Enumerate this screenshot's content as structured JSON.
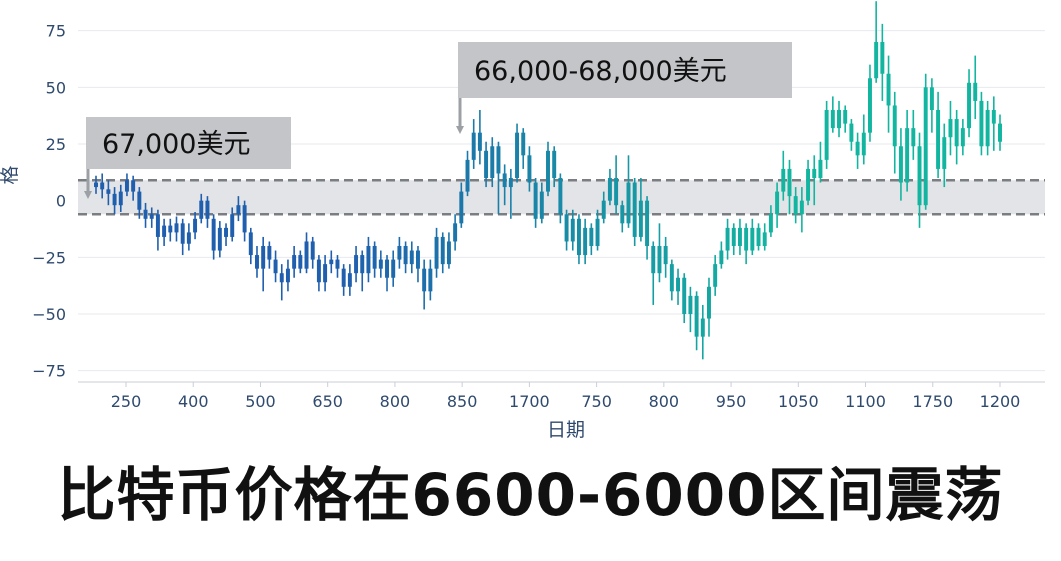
{
  "chart_data": {
    "type": "candlestick",
    "title": "",
    "xlabel": "日期",
    "ylabel": "格",
    "yticks": [
      75,
      50,
      25,
      0,
      -25,
      -50,
      -75
    ],
    "ytick_labels": [
      "75",
      "50",
      "25",
      "0",
      "−25",
      "−50",
      "−75"
    ],
    "xtick_labels": [
      "250",
      "400",
      "500",
      "650",
      "800",
      "850",
      "1700",
      "750",
      "800",
      "950",
      "1050",
      "1100",
      "1750",
      "1200"
    ],
    "ylim": [
      -80,
      85
    ],
    "grid": true,
    "colors": {
      "early": "#1f5fae",
      "late": "#12b5a0",
      "band": "#e2e4e7",
      "band_line": "#7a7d81"
    },
    "band": {
      "upper": 9,
      "lower": -6
    },
    "annotations": [
      {
        "label": "67,000美元",
        "value": 2
      },
      {
        "label": "66,000-68,000美元",
        "value": 18
      }
    ],
    "candles": [
      {
        "o": 6,
        "c": 8,
        "h": 11,
        "l": 3
      },
      {
        "o": 8,
        "c": 5,
        "h": 12,
        "l": 1
      },
      {
        "o": 5,
        "c": 3,
        "h": 9,
        "l": -2
      },
      {
        "o": 3,
        "c": -2,
        "h": 6,
        "l": -6
      },
      {
        "o": -2,
        "c": 4,
        "h": 7,
        "l": -5
      },
      {
        "o": 4,
        "c": 9,
        "h": 12,
        "l": 2
      },
      {
        "o": 9,
        "c": 4,
        "h": 11,
        "l": 0
      },
      {
        "o": 4,
        "c": -4,
        "h": 6,
        "l": -8
      },
      {
        "o": -4,
        "c": -8,
        "h": -1,
        "l": -12
      },
      {
        "o": -8,
        "c": -6,
        "h": -3,
        "l": -12
      },
      {
        "o": -6,
        "c": -16,
        "h": -4,
        "l": -22
      },
      {
        "o": -16,
        "c": -11,
        "h": -8,
        "l": -20
      },
      {
        "o": -11,
        "c": -14,
        "h": -8,
        "l": -18
      },
      {
        "o": -14,
        "c": -10,
        "h": -7,
        "l": -18
      },
      {
        "o": -10,
        "c": -19,
        "h": -8,
        "l": -24
      },
      {
        "o": -19,
        "c": -14,
        "h": -10,
        "l": -22
      },
      {
        "o": -14,
        "c": -8,
        "h": -5,
        "l": -17
      },
      {
        "o": -8,
        "c": 0,
        "h": 3,
        "l": -10
      },
      {
        "o": 0,
        "c": -8,
        "h": 2,
        "l": -12
      },
      {
        "o": -8,
        "c": -22,
        "h": -6,
        "l": -26
      },
      {
        "o": -22,
        "c": -12,
        "h": -9,
        "l": -25
      },
      {
        "o": -12,
        "c": -16,
        "h": -10,
        "l": -20
      },
      {
        "o": -16,
        "c": -6,
        "h": -3,
        "l": -18
      },
      {
        "o": -6,
        "c": -2,
        "h": 2,
        "l": -9
      },
      {
        "o": -2,
        "c": -14,
        "h": 0,
        "l": -18
      },
      {
        "o": -14,
        "c": -24,
        "h": -12,
        "l": -28
      },
      {
        "o": -24,
        "c": -30,
        "h": -20,
        "l": -34
      },
      {
        "o": -30,
        "c": -20,
        "h": -16,
        "l": -40
      },
      {
        "o": -20,
        "c": -26,
        "h": -18,
        "l": -30
      },
      {
        "o": -26,
        "c": -32,
        "h": -22,
        "l": -36
      },
      {
        "o": -32,
        "c": -36,
        "h": -28,
        "l": -44
      },
      {
        "o": -36,
        "c": -30,
        "h": -26,
        "l": -40
      },
      {
        "o": -30,
        "c": -24,
        "h": -20,
        "l": -34
      },
      {
        "o": -24,
        "c": -30,
        "h": -22,
        "l": -32
      },
      {
        "o": -30,
        "c": -18,
        "h": -14,
        "l": -32
      },
      {
        "o": -18,
        "c": -26,
        "h": -16,
        "l": -30
      },
      {
        "o": -26,
        "c": -36,
        "h": -24,
        "l": -40
      },
      {
        "o": -36,
        "c": -28,
        "h": -24,
        "l": -40
      },
      {
        "o": -28,
        "c": -26,
        "h": -22,
        "l": -32
      },
      {
        "o": -26,
        "c": -30,
        "h": -24,
        "l": -34
      },
      {
        "o": -30,
        "c": -38,
        "h": -28,
        "l": -42
      },
      {
        "o": -38,
        "c": -32,
        "h": -28,
        "l": -42
      },
      {
        "o": -32,
        "c": -24,
        "h": -20,
        "l": -36
      },
      {
        "o": -24,
        "c": -32,
        "h": -22,
        "l": -40
      },
      {
        "o": -32,
        "c": -20,
        "h": -16,
        "l": -36
      },
      {
        "o": -20,
        "c": -30,
        "h": -18,
        "l": -34
      },
      {
        "o": -30,
        "c": -26,
        "h": -22,
        "l": -34
      },
      {
        "o": -26,
        "c": -34,
        "h": -24,
        "l": -40
      },
      {
        "o": -34,
        "c": -26,
        "h": -22,
        "l": -38
      },
      {
        "o": -26,
        "c": -20,
        "h": -16,
        "l": -30
      },
      {
        "o": -20,
        "c": -28,
        "h": -18,
        "l": -32
      },
      {
        "o": -28,
        "c": -22,
        "h": -18,
        "l": -32
      },
      {
        "o": -22,
        "c": -30,
        "h": -20,
        "l": -36
      },
      {
        "o": -30,
        "c": -40,
        "h": -26,
        "l": -48
      },
      {
        "o": -40,
        "c": -30,
        "h": -26,
        "l": -44
      },
      {
        "o": -30,
        "c": -16,
        "h": -12,
        "l": -34
      },
      {
        "o": -16,
        "c": -28,
        "h": -14,
        "l": -32
      },
      {
        "o": -28,
        "c": -18,
        "h": -14,
        "l": -30
      },
      {
        "o": -18,
        "c": -10,
        "h": -6,
        "l": -22
      },
      {
        "o": -10,
        "c": 4,
        "h": 8,
        "l": -12
      },
      {
        "o": 4,
        "c": 18,
        "h": 22,
        "l": 2
      },
      {
        "o": 18,
        "c": 30,
        "h": 36,
        "l": 14
      },
      {
        "o": 30,
        "c": 22,
        "h": 40,
        "l": 16
      },
      {
        "o": 22,
        "c": 10,
        "h": 26,
        "l": 6
      },
      {
        "o": 10,
        "c": 24,
        "h": 28,
        "l": 6
      },
      {
        "o": 24,
        "c": 12,
        "h": 26,
        "l": -6
      },
      {
        "o": 12,
        "c": 6,
        "h": 16,
        "l": -2
      },
      {
        "o": 6,
        "c": 10,
        "h": 14,
        "l": -8
      },
      {
        "o": 10,
        "c": 30,
        "h": 34,
        "l": 8
      },
      {
        "o": 30,
        "c": 20,
        "h": 32,
        "l": 14
      },
      {
        "o": 20,
        "c": 8,
        "h": 24,
        "l": 4
      },
      {
        "o": 8,
        "c": -8,
        "h": 10,
        "l": -12
      },
      {
        "o": -8,
        "c": 4,
        "h": 8,
        "l": -10
      },
      {
        "o": 4,
        "c": 22,
        "h": 26,
        "l": 2
      },
      {
        "o": 22,
        "c": 10,
        "h": 24,
        "l": 6
      },
      {
        "o": 10,
        "c": -6,
        "h": 12,
        "l": -10
      },
      {
        "o": -6,
        "c": -18,
        "h": -4,
        "l": -22
      },
      {
        "o": -18,
        "c": -8,
        "h": -4,
        "l": -22
      },
      {
        "o": -8,
        "c": -24,
        "h": -6,
        "l": -28
      },
      {
        "o": -24,
        "c": -12,
        "h": -8,
        "l": -28
      },
      {
        "o": -12,
        "c": -20,
        "h": -10,
        "l": -24
      },
      {
        "o": -20,
        "c": -8,
        "h": -4,
        "l": -22
      },
      {
        "o": -8,
        "c": 0,
        "h": 4,
        "l": -10
      },
      {
        "o": 0,
        "c": 10,
        "h": 14,
        "l": -2
      },
      {
        "o": 10,
        "c": -2,
        "h": 20,
        "l": -6
      },
      {
        "o": -2,
        "c": -10,
        "h": 0,
        "l": -14
      },
      {
        "o": -10,
        "c": 8,
        "h": 20,
        "l": -12
      },
      {
        "o": 8,
        "c": -16,
        "h": 10,
        "l": -20
      },
      {
        "o": -16,
        "c": 0,
        "h": 10,
        "l": -18
      },
      {
        "o": 0,
        "c": -20,
        "h": 2,
        "l": -26
      },
      {
        "o": -20,
        "c": -32,
        "h": -18,
        "l": -46
      },
      {
        "o": -32,
        "c": -20,
        "h": -10,
        "l": -36
      },
      {
        "o": -20,
        "c": -28,
        "h": -16,
        "l": -34
      },
      {
        "o": -28,
        "c": -40,
        "h": -26,
        "l": -44
      },
      {
        "o": -40,
        "c": -34,
        "h": -30,
        "l": -46
      },
      {
        "o": -34,
        "c": -50,
        "h": -32,
        "l": -54
      },
      {
        "o": -50,
        "c": -42,
        "h": -38,
        "l": -58
      },
      {
        "o": -42,
        "c": -60,
        "h": -40,
        "l": -66
      },
      {
        "o": -60,
        "c": -52,
        "h": -46,
        "l": -70
      },
      {
        "o": -52,
        "c": -38,
        "h": -34,
        "l": -60
      },
      {
        "o": -38,
        "c": -28,
        "h": -24,
        "l": -42
      },
      {
        "o": -28,
        "c": -22,
        "h": -18,
        "l": -30
      },
      {
        "o": -22,
        "c": -12,
        "h": -8,
        "l": -26
      },
      {
        "o": -12,
        "c": -20,
        "h": -10,
        "l": -24
      },
      {
        "o": -20,
        "c": -12,
        "h": -8,
        "l": -24
      },
      {
        "o": -12,
        "c": -22,
        "h": -10,
        "l": -28
      },
      {
        "o": -22,
        "c": -12,
        "h": -8,
        "l": -24
      },
      {
        "o": -12,
        "c": -20,
        "h": -10,
        "l": -22
      },
      {
        "o": -20,
        "c": -14,
        "h": -10,
        "l": -22
      },
      {
        "o": -14,
        "c": -6,
        "h": -2,
        "l": -16
      },
      {
        "o": -6,
        "c": 4,
        "h": 8,
        "l": -12
      },
      {
        "o": 4,
        "c": 14,
        "h": 22,
        "l": 0
      },
      {
        "o": 14,
        "c": 2,
        "h": 18,
        "l": -6
      },
      {
        "o": 2,
        "c": -6,
        "h": 6,
        "l": -10
      },
      {
        "o": -6,
        "c": 0,
        "h": 6,
        "l": -14
      },
      {
        "o": 0,
        "c": 14,
        "h": 18,
        "l": -2
      },
      {
        "o": 14,
        "c": 10,
        "h": 20,
        "l": -2
      },
      {
        "o": 10,
        "c": 18,
        "h": 26,
        "l": 8
      },
      {
        "o": 18,
        "c": 40,
        "h": 44,
        "l": 14
      },
      {
        "o": 40,
        "c": 32,
        "h": 46,
        "l": 30
      },
      {
        "o": 32,
        "c": 40,
        "h": 44,
        "l": 28
      },
      {
        "o": 40,
        "c": 34,
        "h": 42,
        "l": 30
      },
      {
        "o": 34,
        "c": 26,
        "h": 36,
        "l": 22
      },
      {
        "o": 26,
        "c": 20,
        "h": 30,
        "l": 14
      },
      {
        "o": 20,
        "c": 30,
        "h": 38,
        "l": 16
      },
      {
        "o": 30,
        "c": 54,
        "h": 60,
        "l": 26
      },
      {
        "o": 54,
        "c": 70,
        "h": 88,
        "l": 52
      },
      {
        "o": 70,
        "c": 56,
        "h": 78,
        "l": 44
      },
      {
        "o": 56,
        "c": 42,
        "h": 64,
        "l": 30
      },
      {
        "o": 42,
        "c": 24,
        "h": 48,
        "l": 12
      },
      {
        "o": 24,
        "c": 8,
        "h": 32,
        "l": 0
      },
      {
        "o": 8,
        "c": 32,
        "h": 40,
        "l": 4
      },
      {
        "o": 32,
        "c": 24,
        "h": 40,
        "l": 18
      },
      {
        "o": 24,
        "c": -2,
        "h": 30,
        "l": -12
      },
      {
        "o": -2,
        "c": 50,
        "h": 56,
        "l": -4
      },
      {
        "o": 50,
        "c": 40,
        "h": 54,
        "l": 30
      },
      {
        "o": 40,
        "c": 14,
        "h": 48,
        "l": 10
      },
      {
        "o": 14,
        "c": 28,
        "h": 34,
        "l": 6
      },
      {
        "o": 28,
        "c": 36,
        "h": 44,
        "l": 20
      },
      {
        "o": 36,
        "c": 24,
        "h": 40,
        "l": 16
      },
      {
        "o": 24,
        "c": 32,
        "h": 36,
        "l": 20
      },
      {
        "o": 32,
        "c": 52,
        "h": 58,
        "l": 28
      },
      {
        "o": 52,
        "c": 44,
        "h": 64,
        "l": 36
      },
      {
        "o": 44,
        "c": 24,
        "h": 48,
        "l": 20
      },
      {
        "o": 24,
        "c": 40,
        "h": 44,
        "l": 20
      },
      {
        "o": 40,
        "c": 34,
        "h": 46,
        "l": 22
      },
      {
        "o": 34,
        "c": 26,
        "h": 38,
        "l": 22
      }
    ]
  },
  "caption": "比特币价格在6600-6000区间震荡"
}
